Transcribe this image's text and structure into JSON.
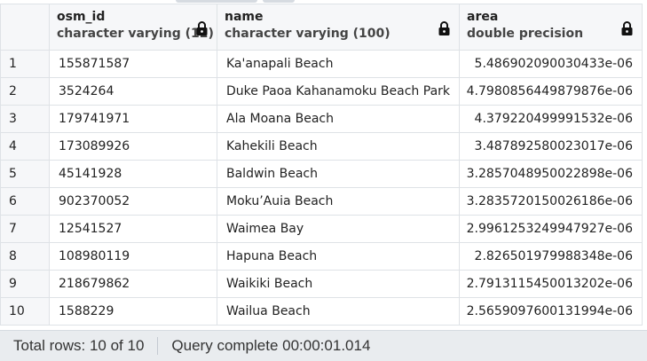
{
  "columns": [
    {
      "name": "osm_id",
      "type": "character varying (12)",
      "icon": "lock-icon"
    },
    {
      "name": "name",
      "type": "character varying (100)",
      "icon": "lock-icon"
    },
    {
      "name": "area",
      "type": "double precision",
      "icon": "lock-icon"
    }
  ],
  "rows": [
    {
      "num": "1",
      "osm_id": "155871587",
      "name": "Ka'anapali Beach",
      "area": "5.486902090030433e-06"
    },
    {
      "num": "2",
      "osm_id": "3524264",
      "name": "Duke Paoa Kahanamoku Beach Park",
      "area": "4.7980856449879876e-06"
    },
    {
      "num": "3",
      "osm_id": "179741971",
      "name": "Ala Moana Beach",
      "area": "4.379220499991532e-06"
    },
    {
      "num": "4",
      "osm_id": "173089926",
      "name": "Kahekili Beach",
      "area": "3.487892580023017e-06"
    },
    {
      "num": "5",
      "osm_id": "45141928",
      "name": "Baldwin Beach",
      "area": "3.2857048950022898e-06"
    },
    {
      "num": "6",
      "osm_id": "902370052",
      "name": "Moku’Auia Beach",
      "area": "3.2835720150026186e-06"
    },
    {
      "num": "7",
      "osm_id": "12541527",
      "name": "Waimea Bay",
      "area": "2.9961253249947927e-06"
    },
    {
      "num": "8",
      "osm_id": "108980119",
      "name": "Hapuna Beach",
      "area": "2.826501979988348e-06"
    },
    {
      "num": "9",
      "osm_id": "218679862",
      "name": "Waikiki Beach",
      "area": "2.7913115450013202e-06"
    },
    {
      "num": "10",
      "osm_id": "1588229",
      "name": "Wailua Beach",
      "area": "2.5659097600131994e-06"
    }
  ],
  "status": {
    "total_rows": "Total rows: 10 of 10",
    "query_complete": "Query complete 00:00:01.014"
  }
}
